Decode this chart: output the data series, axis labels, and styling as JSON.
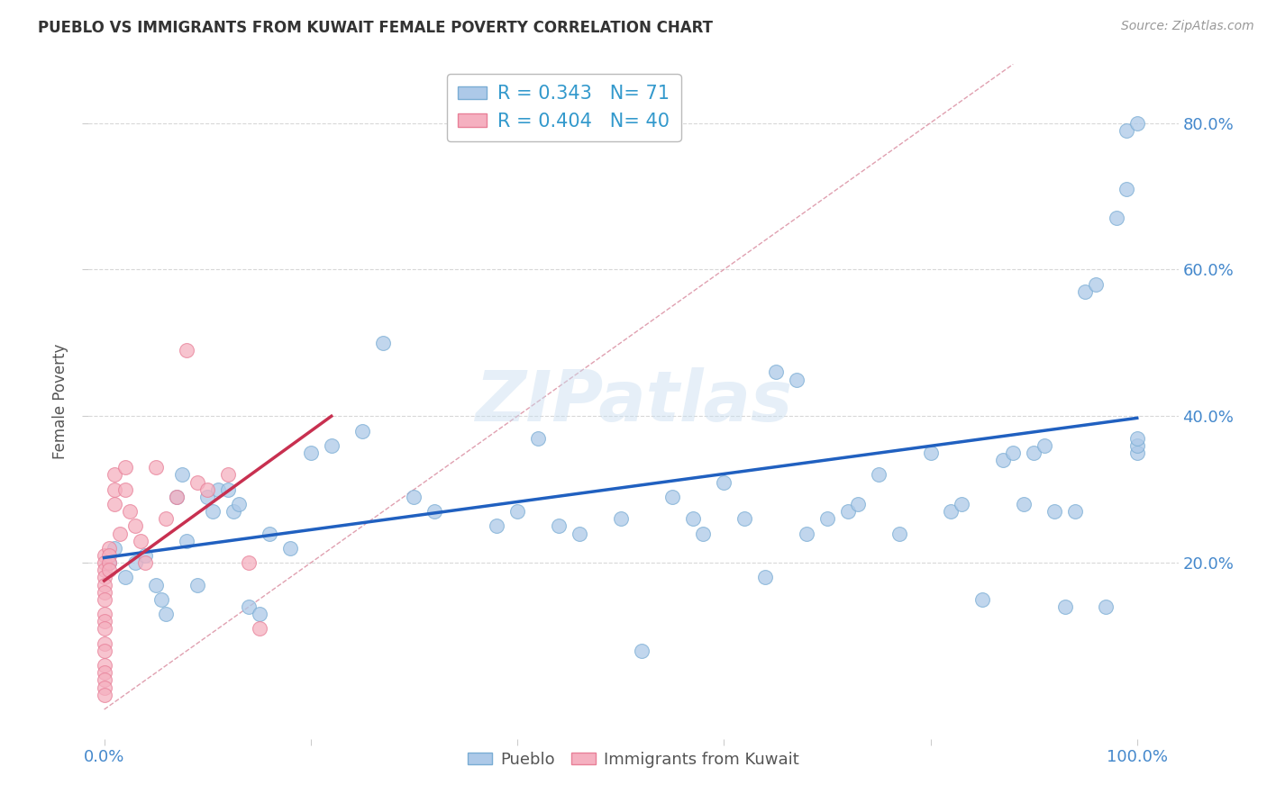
{
  "title": "PUEBLO VS IMMIGRANTS FROM KUWAIT FEMALE POVERTY CORRELATION CHART",
  "source": "Source: ZipAtlas.com",
  "ylabel": "Female Poverty",
  "watermark": "ZIPatlas",
  "legend_pueblo_R": "0.343",
  "legend_pueblo_N": "71",
  "legend_kuwait_R": "0.404",
  "legend_kuwait_N": "40",
  "pueblo_color": "#adc9e8",
  "pueblo_edge_color": "#7aadd4",
  "kuwait_color": "#f5b0c0",
  "kuwait_edge_color": "#e88098",
  "trendline_pueblo_color": "#2060c0",
  "trendline_kuwait_color": "#c83050",
  "diag_color": "#e0a0b0",
  "background_color": "#ffffff",
  "grid_color": "#d8d8d8",
  "tick_color": "#4488cc",
  "xlim": [
    -0.015,
    1.04
  ],
  "ylim": [
    -0.04,
    0.88
  ],
  "pueblo_x": [
    0.005,
    0.01,
    0.02,
    0.03,
    0.04,
    0.05,
    0.055,
    0.06,
    0.07,
    0.075,
    0.08,
    0.09,
    0.1,
    0.105,
    0.11,
    0.12,
    0.125,
    0.13,
    0.14,
    0.15,
    0.16,
    0.18,
    0.2,
    0.22,
    0.25,
    0.27,
    0.3,
    0.32,
    0.38,
    0.4,
    0.42,
    0.44,
    0.46,
    0.5,
    0.52,
    0.55,
    0.57,
    0.58,
    0.6,
    0.62,
    0.64,
    0.65,
    0.67,
    0.68,
    0.7,
    0.72,
    0.73,
    0.75,
    0.77,
    0.8,
    0.82,
    0.83,
    0.85,
    0.87,
    0.88,
    0.89,
    0.9,
    0.91,
    0.92,
    0.93,
    0.94,
    0.95,
    0.96,
    0.97,
    0.98,
    0.99,
    0.99,
    1.0,
    1.0,
    1.0,
    1.0
  ],
  "pueblo_y": [
    0.2,
    0.22,
    0.18,
    0.2,
    0.21,
    0.17,
    0.15,
    0.13,
    0.29,
    0.32,
    0.23,
    0.17,
    0.29,
    0.27,
    0.3,
    0.3,
    0.27,
    0.28,
    0.14,
    0.13,
    0.24,
    0.22,
    0.35,
    0.36,
    0.38,
    0.5,
    0.29,
    0.27,
    0.25,
    0.27,
    0.37,
    0.25,
    0.24,
    0.26,
    0.08,
    0.29,
    0.26,
    0.24,
    0.31,
    0.26,
    0.18,
    0.46,
    0.45,
    0.24,
    0.26,
    0.27,
    0.28,
    0.32,
    0.24,
    0.35,
    0.27,
    0.28,
    0.15,
    0.34,
    0.35,
    0.28,
    0.35,
    0.36,
    0.27,
    0.14,
    0.27,
    0.57,
    0.58,
    0.14,
    0.67,
    0.71,
    0.79,
    0.35,
    0.36,
    0.37,
    0.8
  ],
  "kuwait_x": [
    0.0,
    0.0,
    0.0,
    0.0,
    0.0,
    0.0,
    0.0,
    0.0,
    0.0,
    0.0,
    0.0,
    0.0,
    0.0,
    0.0,
    0.0,
    0.0,
    0.0,
    0.005,
    0.005,
    0.005,
    0.005,
    0.01,
    0.01,
    0.01,
    0.015,
    0.02,
    0.02,
    0.025,
    0.03,
    0.035,
    0.04,
    0.05,
    0.06,
    0.07,
    0.08,
    0.09,
    0.1,
    0.12,
    0.14,
    0.15
  ],
  "kuwait_y": [
    0.21,
    0.2,
    0.19,
    0.18,
    0.17,
    0.16,
    0.15,
    0.13,
    0.12,
    0.11,
    0.09,
    0.08,
    0.06,
    0.05,
    0.04,
    0.03,
    0.02,
    0.22,
    0.21,
    0.2,
    0.19,
    0.32,
    0.3,
    0.28,
    0.24,
    0.33,
    0.3,
    0.27,
    0.25,
    0.23,
    0.2,
    0.33,
    0.26,
    0.29,
    0.49,
    0.31,
    0.3,
    0.32,
    0.2,
    0.11
  ]
}
